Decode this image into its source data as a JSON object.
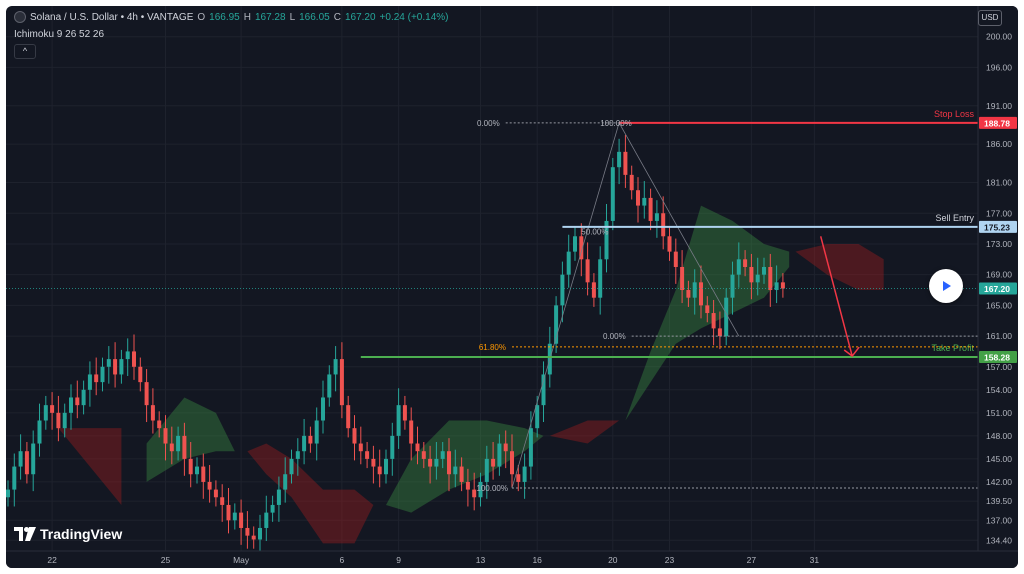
{
  "header": {
    "symbol": "Solana / U.S. Dollar • 4h • VANTAGE",
    "o_label": "O",
    "o_value": "166.95",
    "h_label": "H",
    "h_value": "167.28",
    "l_label": "L",
    "l_value": "166.05",
    "c_label": "C",
    "c_value": "167.20",
    "change": "+0.24 (+0.14%)"
  },
  "indicator": "Ichimoku 9 26 52 26",
  "collapse_label": "^",
  "currency": "USD",
  "brand": "TradingView",
  "colors": {
    "background": "#131722",
    "bull": "#26a69a",
    "bear": "#ef5350",
    "stop_loss": "#f23645",
    "entry": "#b0d4f1",
    "take_profit": "#4caf50",
    "fib": "#ff9800"
  },
  "chart_data": {
    "type": "candlestick",
    "timeframe": "4h",
    "y_ticks": [
      "134.40",
      "137.00",
      "139.50",
      "142.00",
      "145.00",
      "148.00",
      "151.00",
      "154.00",
      "157.00",
      "161.00",
      "165.00",
      "169.00",
      "173.00",
      "177.00",
      "181.00",
      "186.00",
      "191.00",
      "196.00",
      "200.00"
    ],
    "ylim": [
      133,
      204
    ],
    "x_ticks": [
      {
        "label": "22",
        "t": 7
      },
      {
        "label": "25",
        "t": 25
      },
      {
        "label": "May",
        "t": 37
      },
      {
        "label": "6",
        "t": 53
      },
      {
        "label": "9",
        "t": 62
      },
      {
        "label": "13",
        "t": 75
      },
      {
        "label": "16",
        "t": 84
      },
      {
        "label": "20",
        "t": 96
      },
      {
        "label": "23",
        "t": 105
      },
      {
        "label": "27",
        "t": 118
      },
      {
        "label": "31",
        "t": 128
      }
    ],
    "current_price": "167.20",
    "levels": [
      {
        "name": "Stop Loss",
        "price": 188.78,
        "label": "188.78"
      },
      {
        "name": "Sell Entry",
        "price": 175.23,
        "label": "175.23"
      },
      {
        "name": "Take Profit",
        "price": 158.28,
        "label": "158.28"
      }
    ],
    "fib_labels": [
      {
        "text": "0.00%",
        "price": 188.78
      },
      {
        "text": "100.00%",
        "price": 188.78
      },
      {
        "text": "50.00%",
        "price": 174.6
      },
      {
        "text": "0.00%",
        "price": 161.0
      },
      {
        "text": "61.80%",
        "price": 159.6
      },
      {
        "text": "100.00%",
        "price": 141.2
      }
    ],
    "closes": [
      141,
      144,
      146,
      143,
      147,
      150,
      152,
      151,
      149,
      151,
      153,
      152,
      154,
      156,
      155,
      157,
      158,
      156,
      158,
      159,
      157,
      155,
      152,
      150,
      149,
      147,
      146,
      148,
      145,
      143,
      144,
      142,
      141,
      140,
      139,
      137,
      138,
      136,
      135,
      134.5,
      136,
      138,
      139,
      141,
      143,
      145,
      146,
      148,
      147,
      150,
      153,
      156,
      158,
      152,
      149,
      147,
      146,
      145,
      144,
      143,
      145,
      148,
      152,
      150,
      147,
      146,
      145,
      144,
      145,
      146,
      143,
      144,
      142,
      141,
      140,
      142,
      145,
      144,
      147,
      146,
      143,
      142,
      144,
      149,
      152,
      156,
      160,
      165,
      169,
      172,
      174,
      171,
      168,
      166,
      171,
      176,
      183,
      185,
      182,
      180,
      178,
      179,
      176,
      177,
      174,
      172,
      170,
      167,
      166,
      168,
      165,
      164,
      162,
      161,
      166,
      169,
      171,
      170,
      168,
      169,
      170,
      167,
      168,
      167.2
    ],
    "cloud": [
      {
        "t": 8,
        "a": 149,
        "b": 149,
        "kind": "bear"
      },
      {
        "t": 18,
        "a": 149,
        "b": 139,
        "kind": "bear"
      },
      {
        "t": 22,
        "a": 147,
        "b": 142,
        "kind": "bull"
      },
      {
        "t": 28,
        "a": 153,
        "b": 145,
        "kind": "bull"
      },
      {
        "t": 33,
        "a": 151,
        "b": 146,
        "kind": "bull"
      },
      {
        "t": 36,
        "a": 146,
        "b": 146,
        "kind": "bull"
      },
      {
        "t": 38,
        "a": 146,
        "b": 146,
        "kind": "bear"
      },
      {
        "t": 41,
        "a": 147,
        "b": 143,
        "kind": "bear"
      },
      {
        "t": 45,
        "a": 145,
        "b": 140,
        "kind": "bear"
      },
      {
        "t": 50,
        "a": 141,
        "b": 134,
        "kind": "bear"
      },
      {
        "t": 55,
        "a": 141,
        "b": 134,
        "kind": "bear"
      },
      {
        "t": 58,
        "a": 139,
        "b": 139,
        "kind": "bear"
      },
      {
        "t": 60,
        "a": 139,
        "b": 139,
        "kind": "bull"
      },
      {
        "t": 64,
        "a": 145,
        "b": 138,
        "kind": "bull"
      },
      {
        "t": 70,
        "a": 150,
        "b": 141,
        "kind": "bull"
      },
      {
        "t": 76,
        "a": 150,
        "b": 143,
        "kind": "bull"
      },
      {
        "t": 82,
        "a": 149,
        "b": 146,
        "kind": "bull"
      },
      {
        "t": 85,
        "a": 148,
        "b": 148,
        "kind": "bull"
      },
      {
        "t": 86,
        "a": 148,
        "b": 148,
        "kind": "bear"
      },
      {
        "t": 92,
        "a": 150,
        "b": 147,
        "kind": "bear"
      },
      {
        "t": 97,
        "a": 150,
        "b": 150,
        "kind": "bear"
      },
      {
        "t": 98,
        "a": 150,
        "b": 150,
        "kind": "bull"
      },
      {
        "t": 102,
        "a": 159,
        "b": 155,
        "kind": "bull"
      },
      {
        "t": 106,
        "a": 167,
        "b": 160,
        "kind": "bull"
      },
      {
        "t": 110,
        "a": 178,
        "b": 162,
        "kind": "bull"
      },
      {
        "t": 115,
        "a": 176,
        "b": 164,
        "kind": "bull"
      },
      {
        "t": 120,
        "a": 173,
        "b": 166,
        "kind": "bull"
      },
      {
        "t": 124,
        "a": 172,
        "b": 170,
        "kind": "bull"
      },
      {
        "t": 125,
        "a": 172,
        "b": 172,
        "kind": "bear"
      },
      {
        "t": 130,
        "a": 173,
        "b": 169,
        "kind": "bear"
      },
      {
        "t": 135,
        "a": 173,
        "b": 167,
        "kind": "bear"
      },
      {
        "t": 139,
        "a": 171,
        "b": 167,
        "kind": "bear"
      }
    ]
  }
}
